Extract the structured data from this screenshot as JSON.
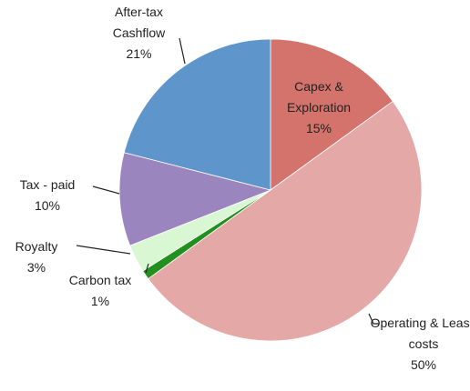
{
  "chart_data": {
    "type": "pie",
    "categories": [
      "Capex & Exploration",
      "Operating & Lease costs",
      "Carbon tax",
      "Royalty",
      "Tax - paid",
      "After-tax Cashflow"
    ],
    "values": [
      15,
      50,
      1,
      3,
      10,
      21
    ],
    "value_labels": [
      "15%",
      "50%",
      "1%",
      "3%",
      "10%",
      "21%"
    ],
    "colors": [
      "#d4736b",
      "#e4a8a6",
      "#22901f",
      "#d9f7d2",
      "#9b85bf",
      "#5e96cb"
    ]
  }
}
